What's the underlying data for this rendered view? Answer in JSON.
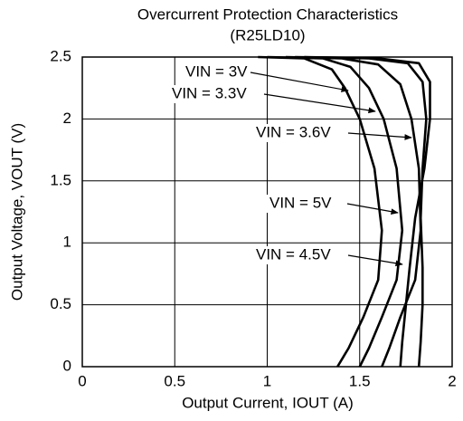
{
  "chart_data": {
    "type": "line",
    "title": "Overcurrent Protection Characteristics",
    "subtitle": "(R25LD10)",
    "x_label": "Output Current, IOUT (A)",
    "y_label": "Output Voltage, VOUT (V)",
    "xlim": [
      0,
      2
    ],
    "xticks": [
      0,
      0.5,
      1,
      1.5,
      2
    ],
    "ylim": [
      0,
      2.5
    ],
    "yticks": [
      0,
      0.5,
      1,
      1.5,
      2,
      2.5
    ],
    "grid": true,
    "series": [
      {
        "name": "VIN = 3V",
        "color": "#000000",
        "x": [
          0.95,
          1.2,
          1.35,
          1.42,
          1.5,
          1.58,
          1.62,
          1.6,
          1.52,
          1.44,
          1.38
        ],
        "values": [
          2.5,
          2.49,
          2.4,
          2.25,
          2.0,
          1.6,
          1.1,
          0.7,
          0.4,
          0.15,
          0
        ]
      },
      {
        "name": "VIN = 3.3V",
        "color": "#000000",
        "x": [
          1.0,
          1.3,
          1.45,
          1.55,
          1.63,
          1.7,
          1.73,
          1.7,
          1.62,
          1.55,
          1.5
        ],
        "values": [
          2.5,
          2.49,
          2.42,
          2.25,
          2.0,
          1.6,
          1.1,
          0.7,
          0.4,
          0.15,
          0
        ]
      },
      {
        "name": "VIN = 3.6V",
        "color": "#000000",
        "x": [
          1.1,
          1.4,
          1.6,
          1.72,
          1.78,
          1.82,
          1.83,
          1.8,
          1.72,
          1.66,
          1.62
        ],
        "values": [
          2.5,
          2.49,
          2.44,
          2.28,
          2.0,
          1.6,
          1.1,
          0.7,
          0.4,
          0.15,
          0
        ]
      },
      {
        "name": "VIN = 5V",
        "color": "#000000",
        "x": [
          1.2,
          1.6,
          1.82,
          1.88,
          1.88,
          1.85,
          1.8,
          1.77,
          1.75,
          1.73,
          1.72
        ],
        "values": [
          2.5,
          2.49,
          2.45,
          2.3,
          2.0,
          1.6,
          1.2,
          0.8,
          0.5,
          0.2,
          0
        ]
      },
      {
        "name": "VIN = 4.5V",
        "color": "#000000",
        "x": [
          1.15,
          1.55,
          1.76,
          1.84,
          1.86,
          1.84,
          1.83,
          1.84,
          1.84,
          1.83,
          1.82
        ],
        "values": [
          2.5,
          2.49,
          2.45,
          2.3,
          2.0,
          1.6,
          1.2,
          0.8,
          0.5,
          0.2,
          0
        ]
      }
    ]
  }
}
